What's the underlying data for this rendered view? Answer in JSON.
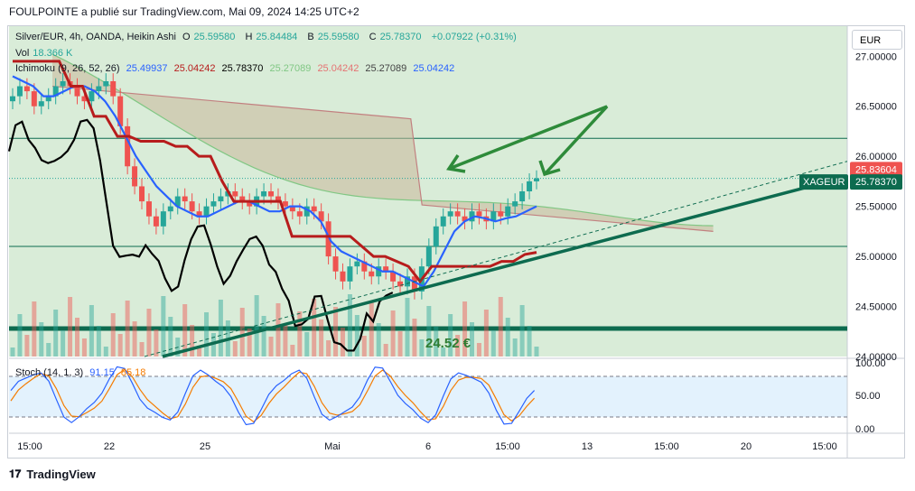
{
  "header": {
    "publisher_line": "FOULPOINTE a publié sur TradingView.com, Mai 09, 2024 14:25 UTC+2"
  },
  "legend": {
    "symbol": "Silver/EUR, 4h, OANDA, Heikin Ashi",
    "o_label": "O",
    "o": "25.59580",
    "h_label": "H",
    "h": "25.84484",
    "b_label": "B",
    "b": "25.59580",
    "c_label": "C",
    "c": "25.78370",
    "change": "+0.07922 (+0.31%)",
    "vol_label": "Vol",
    "vol": "18.366 K",
    "ichimoku_label": "Ichimoku (9, 26, 52, 26)",
    "ichi_values": [
      "25.49937",
      "25.04242",
      "25.78370",
      "25.27089",
      "25.04242",
      "25.27089",
      "25.04242"
    ],
    "stoch_label": "Stoch (14, 1, 3)",
    "stoch_k": "91.15",
    "stoch_d": "85.18"
  },
  "currency_button": "EUR",
  "footer": {
    "brand": "TradingView"
  },
  "colors": {
    "bull": "#26a69a",
    "bear": "#ef5350",
    "tenkan": "#2962ff",
    "kijun": "#b71c1c",
    "chikou": "#000000",
    "kumo": "#c8b89a",
    "trend": "#0d6b4f",
    "arrow": "#2e8b3a"
  },
  "chart_data": {
    "type": "candlestick",
    "title": "Silver/EUR, 4h, OANDA, Heikin Ashi",
    "ylim": [
      24.0,
      27.3
    ],
    "y_ticks": [
      "27.00000",
      "26.50000",
      "26.00000",
      "25.50000",
      "25.00000",
      "24.50000",
      "24.00000"
    ],
    "x_ticks": [
      "15:00",
      "22",
      "25",
      "Mai",
      "6",
      "15:00",
      "13",
      "15:00",
      "20",
      "15:00"
    ],
    "price_labels": [
      {
        "name": "",
        "value": "25.83604"
      },
      {
        "name": "XAGEUR",
        "value": "25.78370"
      }
    ],
    "annotation": "24.52 €",
    "stoch_ticks": [
      "100.00",
      "50.00",
      "0.00"
    ],
    "horizontal_levels": [
      26.18,
      25.1,
      24.28
    ],
    "close_prices": [
      26.6,
      26.7,
      26.65,
      26.5,
      26.55,
      26.6,
      26.7,
      26.75,
      26.7,
      26.6,
      26.55,
      26.65,
      26.7,
      26.75,
      26.6,
      26.3,
      25.9,
      25.7,
      25.55,
      25.4,
      25.3,
      25.45,
      25.5,
      25.6,
      25.55,
      25.45,
      25.4,
      25.5,
      25.55,
      25.6,
      25.65,
      25.6,
      25.55,
      25.5,
      25.6,
      25.65,
      25.6,
      25.55,
      25.5,
      25.45,
      25.4,
      25.5,
      25.45,
      25.35,
      25.0,
      24.85,
      24.75,
      24.9,
      24.95,
      24.85,
      24.8,
      24.9,
      24.85,
      24.75,
      24.7,
      24.8,
      24.65,
      24.9,
      25.1,
      25.3,
      25.4,
      25.45,
      25.4,
      25.35,
      25.45,
      25.4,
      25.35,
      25.45,
      25.4,
      25.5,
      25.55,
      25.65,
      25.75,
      25.78
    ],
    "series": [
      {
        "name": "Tenkan",
        "values": [
          26.8,
          26.75,
          26.7,
          26.6,
          26.6,
          26.65,
          26.7,
          26.7,
          26.65,
          26.55,
          26.4,
          26.2,
          26.0,
          25.85,
          25.7,
          25.6,
          25.5,
          25.45,
          25.4,
          25.4,
          25.45,
          25.5,
          25.55,
          25.55,
          25.5,
          25.45,
          25.45,
          25.5,
          25.5,
          25.45,
          25.35,
          25.15,
          25.05,
          25.0,
          24.95,
          24.9,
          24.85,
          24.85,
          24.8,
          24.75,
          24.7,
          24.85,
          25.05,
          25.25,
          25.35,
          25.4,
          25.38,
          25.35,
          25.38,
          25.4,
          25.45,
          25.5
        ]
      },
      {
        "name": "Kijun",
        "values": [
          26.95,
          26.95,
          26.95,
          26.95,
          26.95,
          26.7,
          26.7,
          26.4,
          26.4,
          26.2,
          26.2,
          26.15,
          26.15,
          26.15,
          26.1,
          26.1,
          26.0,
          26.0,
          25.75,
          25.55,
          25.55,
          25.55,
          25.55,
          25.55,
          25.2,
          25.2,
          25.2,
          25.2,
          25.2,
          25.2,
          25.1,
          25.0,
          25.0,
          24.95,
          24.9,
          24.75,
          24.9,
          24.9,
          24.9,
          24.9,
          24.9,
          24.9,
          24.95,
          24.95,
          25.02,
          25.04
        ]
      }
    ]
  }
}
